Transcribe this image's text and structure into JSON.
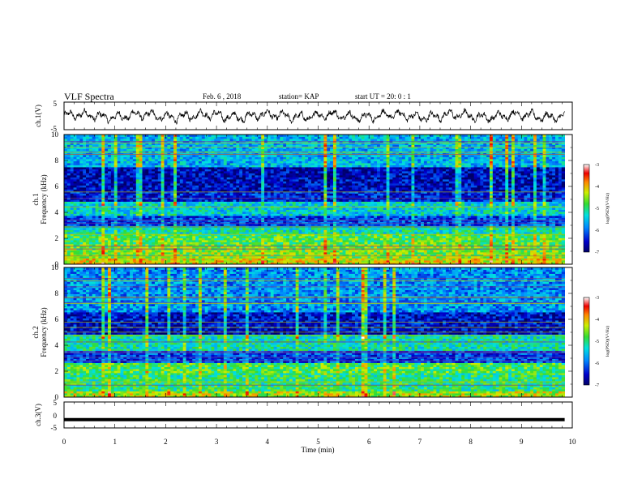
{
  "header": {
    "title": "VLF Spectra",
    "date": "Feb. 6 , 2018",
    "station": "station= KAP",
    "start_time": "start UT =  20: 0 : 1"
  },
  "chart_data": [
    {
      "type": "line",
      "panel": "ch1-waveform",
      "ylabel": "ch.1(V)",
      "ylim": [
        -5,
        5
      ],
      "yticks": [
        "5",
        "-5"
      ],
      "xlim": [
        0,
        10
      ],
      "data_extent_min": [
        0,
        9.85
      ],
      "note_series": "noisy waveform oscillating roughly between -2.5 and 2.5 V"
    },
    {
      "type": "heatmap",
      "panel": "ch1-spectrogram",
      "ylabel_top": "ch.1",
      "ylabel": "Frequency (kHz)",
      "ylim": [
        0,
        10
      ],
      "yticks": [
        "0",
        "2",
        "4",
        "6",
        "8",
        "10"
      ],
      "xlim": [
        0,
        10
      ],
      "colorbar": {
        "label": "log(PSD)(V²/Hz)",
        "range": [
          -7,
          -3
        ],
        "ticks": [
          "-3",
          "-4",
          "-5",
          "-6",
          "-7"
        ]
      },
      "bands_khz": [
        {
          "from": 0.0,
          "to": 0.5,
          "level": 0.7
        },
        {
          "from": 0.5,
          "to": 1.5,
          "level": 0.6
        },
        {
          "from": 1.5,
          "to": 2.4,
          "level": 0.55
        },
        {
          "from": 2.4,
          "to": 3.0,
          "level": 0.45
        },
        {
          "from": 3.0,
          "to": 3.8,
          "level": 0.2
        },
        {
          "from": 3.8,
          "to": 4.8,
          "level": 0.4
        },
        {
          "from": 4.8,
          "to": 5.6,
          "level": 0.15
        },
        {
          "from": 5.6,
          "to": 7.5,
          "level": 0.1
        },
        {
          "from": 7.5,
          "to": 10.0,
          "level": 0.35
        }
      ]
    },
    {
      "type": "heatmap",
      "panel": "ch2-spectrogram",
      "ylabel_top": "ch.2",
      "ylabel": "Frequency (kHz)",
      "ylim": [
        0,
        10
      ],
      "yticks": [
        "0",
        "2",
        "4",
        "6",
        "8",
        "10"
      ],
      "xlim": [
        0,
        10
      ],
      "colorbar": {
        "label": "log(PSD)(V²/Hz)",
        "range": [
          -7,
          -3
        ],
        "ticks": [
          "-3",
          "-4",
          "-5",
          "-6",
          "-7"
        ]
      },
      "bands_khz": [
        {
          "from": 0.0,
          "to": 0.5,
          "level": 0.65
        },
        {
          "from": 0.5,
          "to": 1.8,
          "level": 0.5
        },
        {
          "from": 1.8,
          "to": 2.6,
          "level": 0.55
        },
        {
          "from": 2.6,
          "to": 3.6,
          "level": 0.2
        },
        {
          "from": 3.6,
          "to": 4.8,
          "level": 0.45
        },
        {
          "from": 4.8,
          "to": 6.5,
          "level": 0.12
        },
        {
          "from": 6.5,
          "to": 10.0,
          "level": 0.3
        }
      ]
    },
    {
      "type": "line",
      "panel": "ch3-waveform",
      "ylabel": "ch.3(V)",
      "ylim": [
        -5,
        5
      ],
      "yticks": [
        "5",
        "0",
        "-5"
      ],
      "xlim": [
        0,
        10
      ],
      "xlabel": "Time (min)",
      "xticks": [
        "0",
        "1",
        "2",
        "3",
        "4",
        "5",
        "6",
        "7",
        "8",
        "9",
        "10"
      ],
      "constant_value": -1.8,
      "data_extent_min": [
        0,
        9.85
      ]
    }
  ]
}
